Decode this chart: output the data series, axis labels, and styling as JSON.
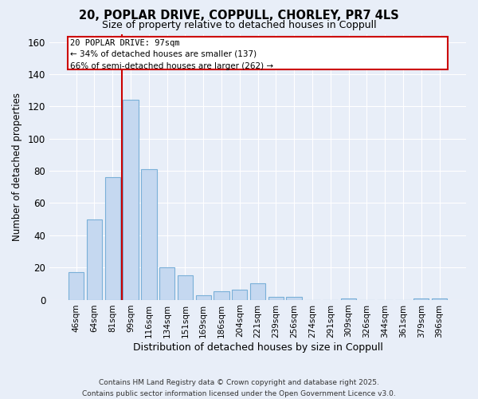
{
  "title": "20, POPLAR DRIVE, COPPULL, CHORLEY, PR7 4LS",
  "subtitle": "Size of property relative to detached houses in Coppull",
  "xlabel": "Distribution of detached houses by size in Coppull",
  "ylabel": "Number of detached properties",
  "footer_line1": "Contains HM Land Registry data © Crown copyright and database right 2025.",
  "footer_line2": "Contains public sector information licensed under the Open Government Licence v3.0.",
  "categories": [
    "46sqm",
    "64sqm",
    "81sqm",
    "99sqm",
    "116sqm",
    "134sqm",
    "151sqm",
    "169sqm",
    "186sqm",
    "204sqm",
    "221sqm",
    "239sqm",
    "256sqm",
    "274sqm",
    "291sqm",
    "309sqm",
    "326sqm",
    "344sqm",
    "361sqm",
    "379sqm",
    "396sqm"
  ],
  "values": [
    17,
    50,
    76,
    124,
    81,
    20,
    15,
    3,
    5,
    6,
    10,
    2,
    2,
    0,
    0,
    1,
    0,
    0,
    0,
    1,
    1
  ],
  "bar_color": "#c5d8f0",
  "bar_edge_color": "#7ab0d8",
  "annotation_title": "20 POPLAR DRIVE: 97sqm",
  "annotation_line2": "← 34% of detached houses are smaller (137)",
  "annotation_line3": "66% of semi-detached houses are larger (262) →",
  "vline_color": "#cc0000",
  "annotation_box_edge_color": "#cc0000",
  "ylim": [
    0,
    165
  ],
  "yticks": [
    0,
    20,
    40,
    60,
    80,
    100,
    120,
    140,
    160
  ],
  "background_color": "#e8eef8",
  "plot_bg_color": "#e8eef8",
  "grid_color": "#ffffff",
  "vline_x_index": 3
}
